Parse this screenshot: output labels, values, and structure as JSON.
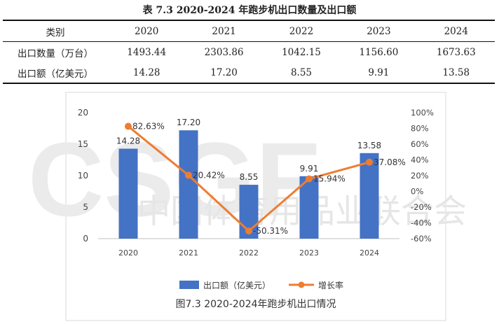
{
  "table": {
    "title": "表 7.3 2020-2024 年跑步机出口数量及出口额",
    "headers": [
      "类别",
      "2020",
      "2021",
      "2022",
      "2023",
      "2024"
    ],
    "rows": [
      [
        "出口数量（万台）",
        "1493.44",
        "2303.86",
        "1042.15",
        "1156.60",
        "1673.63"
      ],
      [
        "出口额（亿美元）",
        "14.28",
        "17.20",
        "8.55",
        "9.91",
        "13.58"
      ]
    ]
  },
  "watermark": {
    "text": "中国体育用品业联合会",
    "logo_text": "CSGF"
  },
  "chart_data": {
    "type": "bar",
    "categories": [
      "2020",
      "2021",
      "2022",
      "2023",
      "2024"
    ],
    "series": [
      {
        "name": "出口额（亿美元）",
        "type": "bar",
        "axis": "left",
        "color": "#4472C4",
        "values": [
          14.28,
          17.2,
          8.55,
          9.91,
          13.58
        ],
        "labels": [
          "14.28",
          "17.20",
          "8.55",
          "9.91",
          "13.58"
        ]
      },
      {
        "name": "增长率",
        "type": "line",
        "axis": "right",
        "color": "#ED7D31",
        "values": [
          82.63,
          20.42,
          -50.31,
          15.94,
          37.08
        ],
        "labels": [
          "82.63%",
          "20.42%",
          "-50.31%",
          "15.94%",
          "37.08%"
        ]
      }
    ],
    "y_left": {
      "min": 0,
      "max": 20,
      "ticks": [
        "0",
        "5",
        "10",
        "15",
        "20"
      ]
    },
    "y_right": {
      "min": -60,
      "max": 100,
      "ticks": [
        "-60%",
        "-40%",
        "-20%",
        "0%",
        "20%",
        "40%",
        "60%",
        "80%",
        "100%"
      ]
    },
    "legend": {
      "position": "bottom"
    },
    "grid": false,
    "caption": "图7.3 2020-2024年跑步机出口情况"
  }
}
